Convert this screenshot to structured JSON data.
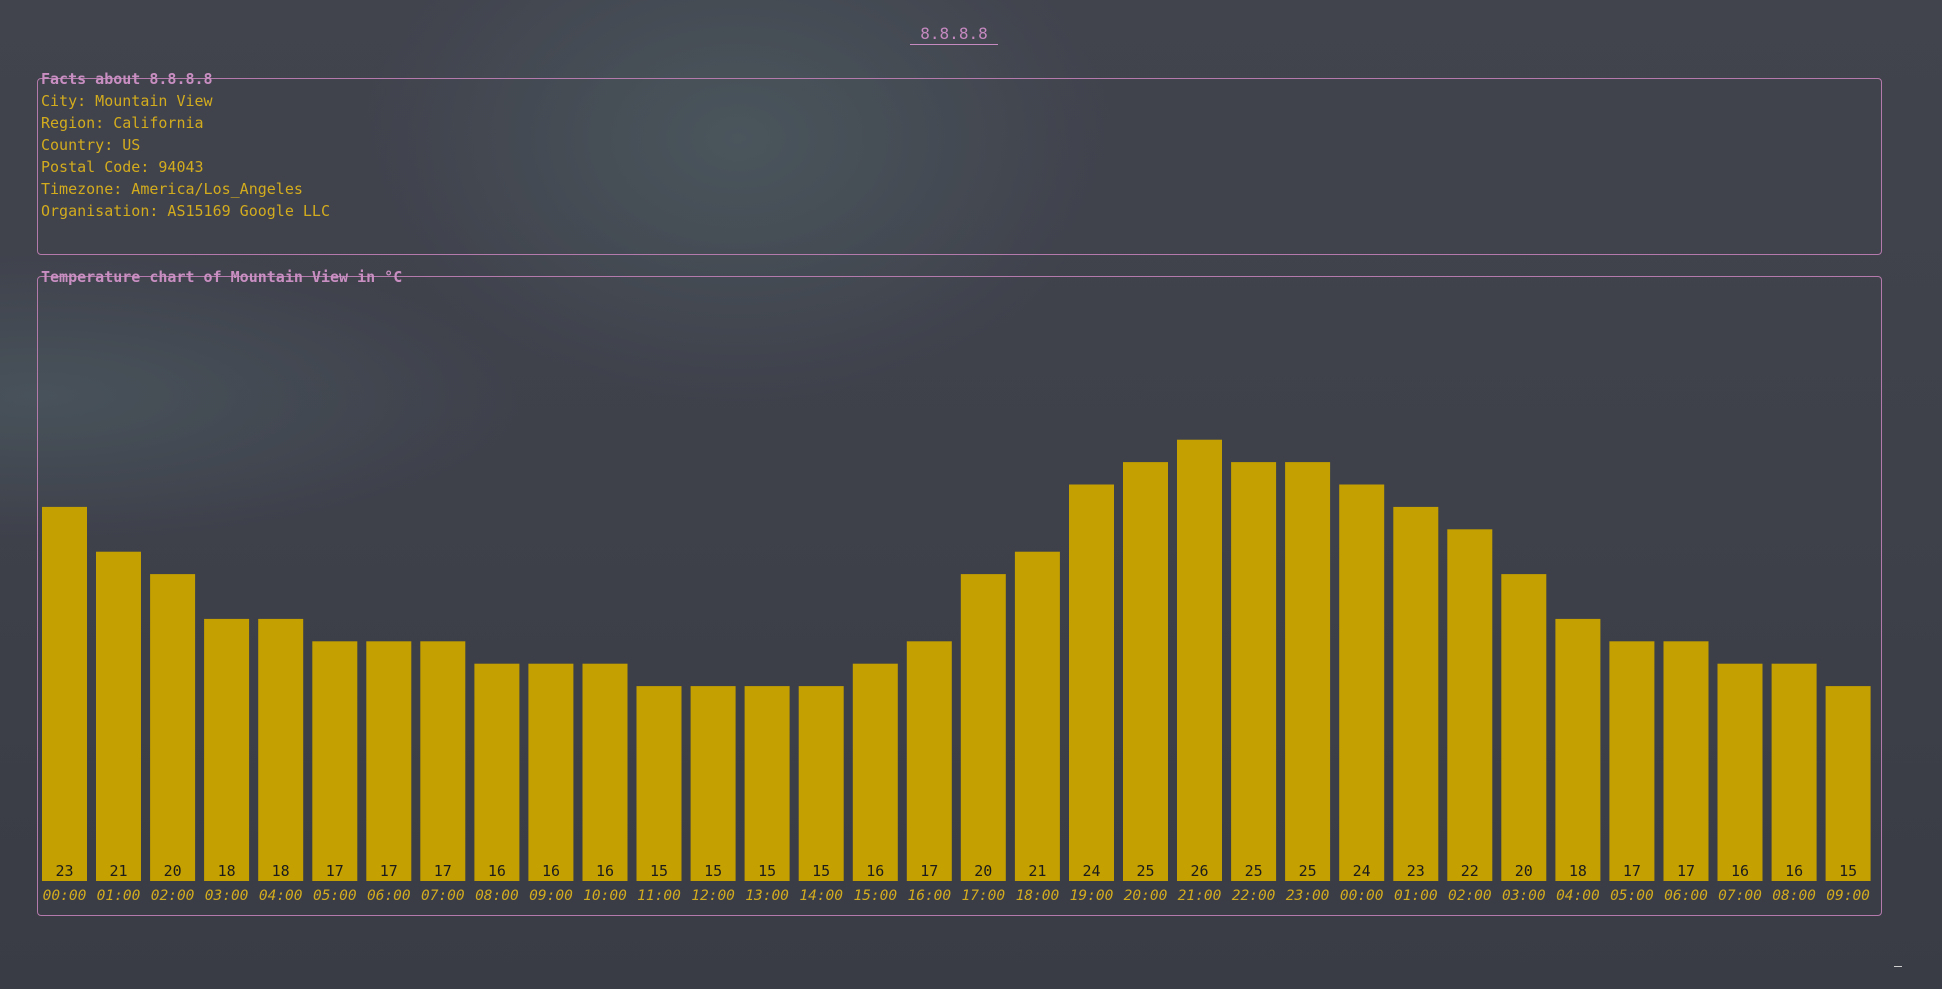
{
  "page": {
    "title": "8.8.8.8"
  },
  "facts": {
    "heading": "Facts about 8.8.8.8",
    "items": [
      "City: Mountain View",
      "Region: California",
      "Country: US",
      "Postal Code: 94043",
      "Timezone: America/Los_Angeles",
      "Organisation: AS15169 Google LLC"
    ]
  },
  "chart_data": {
    "type": "bar",
    "title": "Temperature chart of Mountain View in °C",
    "categories": [
      "00:00",
      "01:00",
      "02:00",
      "03:00",
      "04:00",
      "05:00",
      "06:00",
      "07:00",
      "08:00",
      "09:00",
      "10:00",
      "11:00",
      "12:00",
      "13:00",
      "14:00",
      "15:00",
      "16:00",
      "17:00",
      "18:00",
      "19:00",
      "20:00",
      "21:00",
      "22:00",
      "23:00",
      "00:00",
      "01:00",
      "02:00",
      "03:00",
      "04:00",
      "05:00",
      "06:00",
      "07:00",
      "08:00",
      "09:00"
    ],
    "values": [
      23,
      21,
      20,
      18,
      18,
      17,
      17,
      17,
      16,
      16,
      16,
      15,
      15,
      15,
      15,
      16,
      17,
      20,
      21,
      24,
      25,
      26,
      25,
      25,
      24,
      23,
      22,
      20,
      18,
      17,
      17,
      16,
      16,
      15
    ],
    "xlabel": "",
    "ylabel": "",
    "grid": false,
    "colors": {
      "bar": "#c4a000",
      "bar_label": "#1c1c1c",
      "tick_label": "#d3ac1e",
      "panel_border": "#b47aac",
      "heading": "#c98fc2"
    }
  }
}
